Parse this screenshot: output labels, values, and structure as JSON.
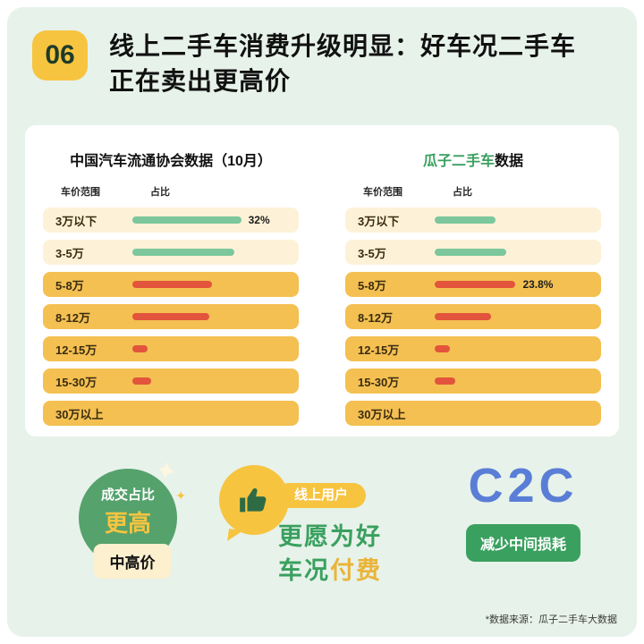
{
  "header": {
    "badge": "06",
    "title_line1": "线上二手车消费升级明显：好车况二手车",
    "title_line2": "正在卖出更高价"
  },
  "chart_data": [
    {
      "type": "bar",
      "title_accent": "",
      "title": "中国汽车流通协会数据（10月）",
      "col_range": "车价范围",
      "col_share": "占比",
      "categories": [
        "3万以下",
        "3-5万",
        "5-8万",
        "8-12万",
        "12-15万",
        "15-30万",
        "30万以上"
      ],
      "values": [
        32,
        30,
        23.5,
        22.5,
        4.5,
        5.5,
        0
      ],
      "labels": [
        "32%",
        "",
        "",
        "",
        "",
        "",
        ""
      ],
      "bar_colors": [
        "green",
        "green",
        "red",
        "red",
        "red",
        "red",
        "none"
      ],
      "row_styles": [
        "cream",
        "cream",
        "orange",
        "orange",
        "orange",
        "orange",
        "orange"
      ],
      "legend_position": "none",
      "xlabel": "",
      "ylabel": ""
    },
    {
      "type": "bar",
      "title_accent": "瓜子二手车",
      "title": "数据",
      "col_range": "车价范围",
      "col_share": "占比",
      "categories": [
        "3万以下",
        "3-5万",
        "5-8万",
        "8-12万",
        "12-15万",
        "15-30万",
        "30万以上"
      ],
      "values": [
        18,
        21,
        23.8,
        16.5,
        4.5,
        6,
        0
      ],
      "labels": [
        "",
        "",
        "23.8%",
        "",
        "",
        "",
        ""
      ],
      "bar_colors": [
        "green",
        "green",
        "red",
        "red",
        "red",
        "red",
        "none"
      ],
      "row_styles": [
        "cream",
        "cream",
        "orange",
        "orange",
        "orange",
        "orange",
        "orange"
      ],
      "legend_position": "none",
      "xlabel": "",
      "ylabel": ""
    }
  ],
  "highlights": {
    "deal_share": {
      "line1": "成交占比",
      "line2": "更高",
      "tag": "中高价"
    },
    "online_users": {
      "pill": "线上用户",
      "line1": "更愿为好",
      "line2_part1": "车况",
      "line2_part2": "付费"
    },
    "c2c": {
      "title": "C2C",
      "tag": "减少中间损耗"
    }
  },
  "footer": {
    "source": "*数据来源：瓜子二手车大数据"
  },
  "icons": {
    "sparkle": "✦",
    "thumbs_up": "thumbs-up-icon"
  },
  "colors": {
    "bg_green": "#e7f2ea",
    "accent_yellow": "#f7c440",
    "accent_green": "#3aa05f",
    "circle_green": "#55a26c",
    "row_cream": "#fdf2d8",
    "row_orange": "#f4c052",
    "green_bar": "#7cc79c",
    "red_bar": "#e2543c",
    "c2c_blue": "#5a7ed6",
    "title_black": "#111111"
  }
}
